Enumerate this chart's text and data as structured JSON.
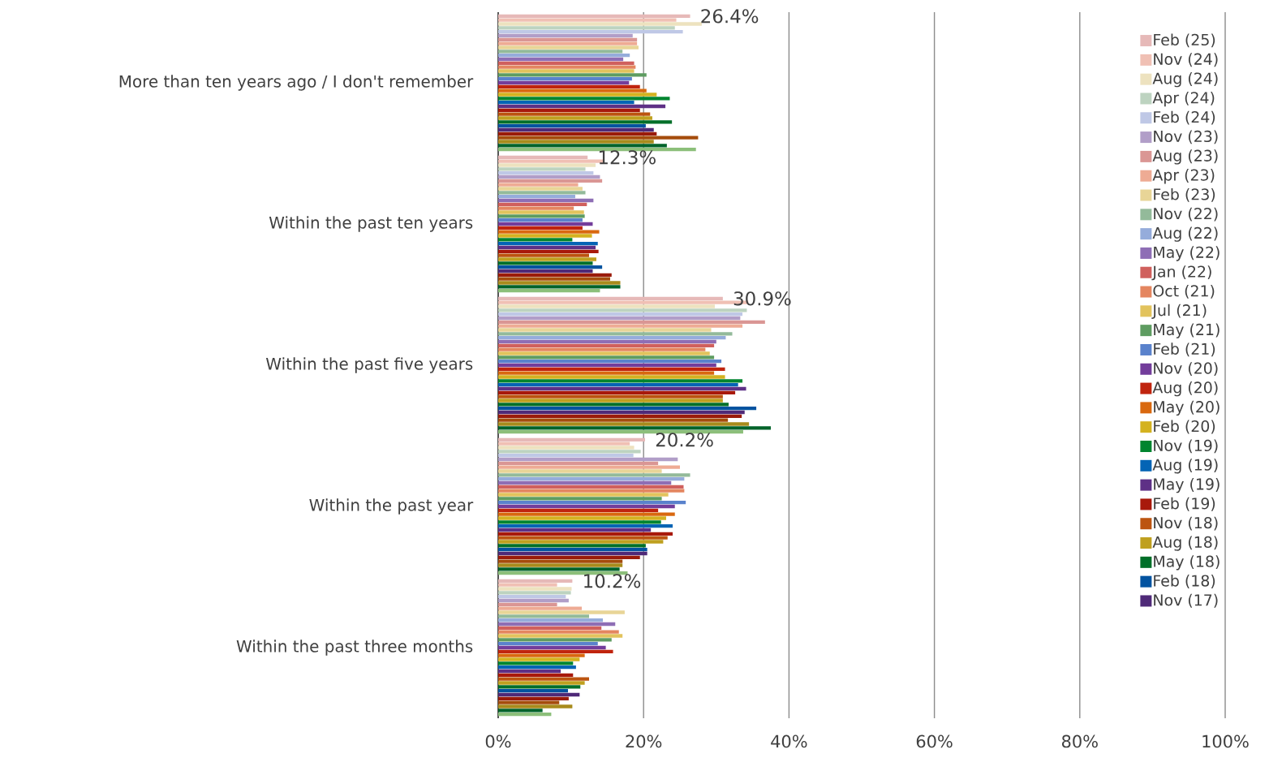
{
  "chart_data": {
    "type": "bar",
    "orientation": "horizontal",
    "categories": [
      "More than ten years ago / I don't remember",
      "Within the past ten years",
      "Within the past five years",
      "Within the past year",
      "Within the past three months"
    ],
    "xlim": [
      0,
      100
    ],
    "xticks": [
      {
        "value": 0,
        "label": "0%"
      },
      {
        "value": 20,
        "label": "20%"
      },
      {
        "value": 40,
        "label": "40%"
      },
      {
        "value": 60,
        "label": "60%"
      },
      {
        "value": 80,
        "label": "80%"
      },
      {
        "value": 100,
        "label": "100%"
      }
    ],
    "grid": "x",
    "legend": "right",
    "series": [
      {
        "name": "Feb (25)",
        "color": "#e6b9b8",
        "values": [
          26.4,
          12.3,
          30.9,
          20.2,
          10.2
        ],
        "value_labels": [
          "26.4%",
          "12.3%",
          "30.9%",
          "20.2%",
          "10.2%"
        ]
      },
      {
        "name": "Nov (24)",
        "color": "#f0c0b4",
        "values": [
          24.5,
          14.6,
          34.4,
          18.1,
          8.1
        ]
      },
      {
        "name": "Aug (24)",
        "color": "#ede2bf",
        "values": [
          28.0,
          13.4,
          29.8,
          18.7,
          10.1
        ]
      },
      {
        "name": "Apr (24)",
        "color": "#bdd3c0",
        "values": [
          24.3,
          12.0,
          34.2,
          19.6,
          10.0
        ]
      },
      {
        "name": "Feb (24)",
        "color": "#bfc8e6",
        "values": [
          25.4,
          13.1,
          33.6,
          18.6,
          9.3
        ]
      },
      {
        "name": "Nov (23)",
        "color": "#b19ec8",
        "values": [
          18.5,
          14.0,
          33.3,
          24.7,
          9.7
        ]
      },
      {
        "name": "Aug (23)",
        "color": "#da9694",
        "values": [
          19.1,
          14.3,
          36.7,
          22.0,
          8.1
        ]
      },
      {
        "name": "Apr (23)",
        "color": "#eeab94",
        "values": [
          19.1,
          11.0,
          33.6,
          25.0,
          11.5
        ]
      },
      {
        "name": "Feb (23)",
        "color": "#e8d597",
        "values": [
          19.3,
          11.6,
          29.3,
          22.5,
          17.4
        ]
      },
      {
        "name": "Nov (22)",
        "color": "#93ba9a",
        "values": [
          17.1,
          12.0,
          32.2,
          26.4,
          12.5
        ]
      },
      {
        "name": "Aug (22)",
        "color": "#95acdb",
        "values": [
          18.1,
          10.6,
          31.3,
          25.6,
          14.4
        ]
      },
      {
        "name": "May (22)",
        "color": "#8e6eb5",
        "values": [
          17.2,
          13.1,
          30.0,
          23.8,
          16.1
        ]
      },
      {
        "name": "Jan (22)",
        "color": "#d0605d",
        "values": [
          18.7,
          12.2,
          29.7,
          25.5,
          14.2
        ]
      },
      {
        "name": "Oct (21)",
        "color": "#e48660",
        "values": [
          18.9,
          10.4,
          28.5,
          25.6,
          16.6
        ]
      },
      {
        "name": "Jul (21)",
        "color": "#e2c35d",
        "values": [
          18.7,
          11.8,
          29.1,
          23.4,
          17.1
        ]
      },
      {
        "name": "May (21)",
        "color": "#5e9c61",
        "values": [
          20.4,
          11.9,
          29.7,
          22.5,
          15.6
        ]
      },
      {
        "name": "Feb (21)",
        "color": "#5a82cc",
        "values": [
          18.4,
          11.6,
          30.7,
          25.8,
          13.7
        ]
      },
      {
        "name": "Nov (20)",
        "color": "#733d9b",
        "values": [
          18.0,
          13.0,
          30.0,
          24.3,
          14.8
        ]
      },
      {
        "name": "Aug (20)",
        "color": "#c0240e",
        "values": [
          19.5,
          11.6,
          31.2,
          22.0,
          15.8
        ]
      },
      {
        "name": "May (20)",
        "color": "#d9680f",
        "values": [
          20.4,
          13.9,
          29.7,
          24.3,
          11.9
        ]
      },
      {
        "name": "Feb (20)",
        "color": "#d4b220",
        "values": [
          21.8,
          12.9,
          31.2,
          23.1,
          11.2
        ]
      },
      {
        "name": "Nov (19)",
        "color": "#00852f",
        "values": [
          23.6,
          10.2,
          33.6,
          22.4,
          10.3
        ]
      },
      {
        "name": "Aug (19)",
        "color": "#0464b5",
        "values": [
          18.7,
          13.7,
          33.0,
          24.0,
          10.7
        ]
      },
      {
        "name": "May (19)",
        "color": "#5e3086",
        "values": [
          23.0,
          13.4,
          34.1,
          21.0,
          8.6
        ]
      },
      {
        "name": "Feb (19)",
        "color": "#a8190b",
        "values": [
          19.5,
          13.8,
          32.6,
          24.0,
          10.3
        ]
      },
      {
        "name": "Nov (18)",
        "color": "#bc5410",
        "values": [
          20.9,
          12.5,
          30.9,
          23.3,
          12.5
        ]
      },
      {
        "name": "Aug (18)",
        "color": "#bfa01f",
        "values": [
          21.2,
          13.5,
          30.9,
          22.7,
          11.9
        ]
      },
      {
        "name": "May (18)",
        "color": "#006f29",
        "values": [
          23.9,
          13.0,
          31.7,
          20.3,
          11.3
        ]
      },
      {
        "name": "Feb (18)",
        "color": "#0353a0",
        "values": [
          20.3,
          14.3,
          35.5,
          20.5,
          9.6
        ]
      },
      {
        "name": "Nov (17)",
        "color": "#4f2a78",
        "values": [
          21.4,
          13.0,
          33.9,
          20.5,
          11.2
        ]
      },
      {
        "color": "#9a1b0a",
        "values": [
          21.8,
          15.6,
          33.5,
          19.5,
          9.7
        ]
      },
      {
        "color": "#a54c0c",
        "values": [
          27.5,
          15.4,
          31.6,
          17.1,
          8.4
        ]
      },
      {
        "color": "#a88b1c",
        "values": [
          21.4,
          16.8,
          34.5,
          17.1,
          10.2
        ]
      },
      {
        "color": "#00632a",
        "values": [
          23.2,
          16.8,
          37.5,
          16.7,
          6.1
        ]
      },
      {
        "color": "#8cbf7a",
        "values": [
          27.2,
          14.0,
          33.7,
          17.8,
          7.3
        ]
      }
    ]
  }
}
